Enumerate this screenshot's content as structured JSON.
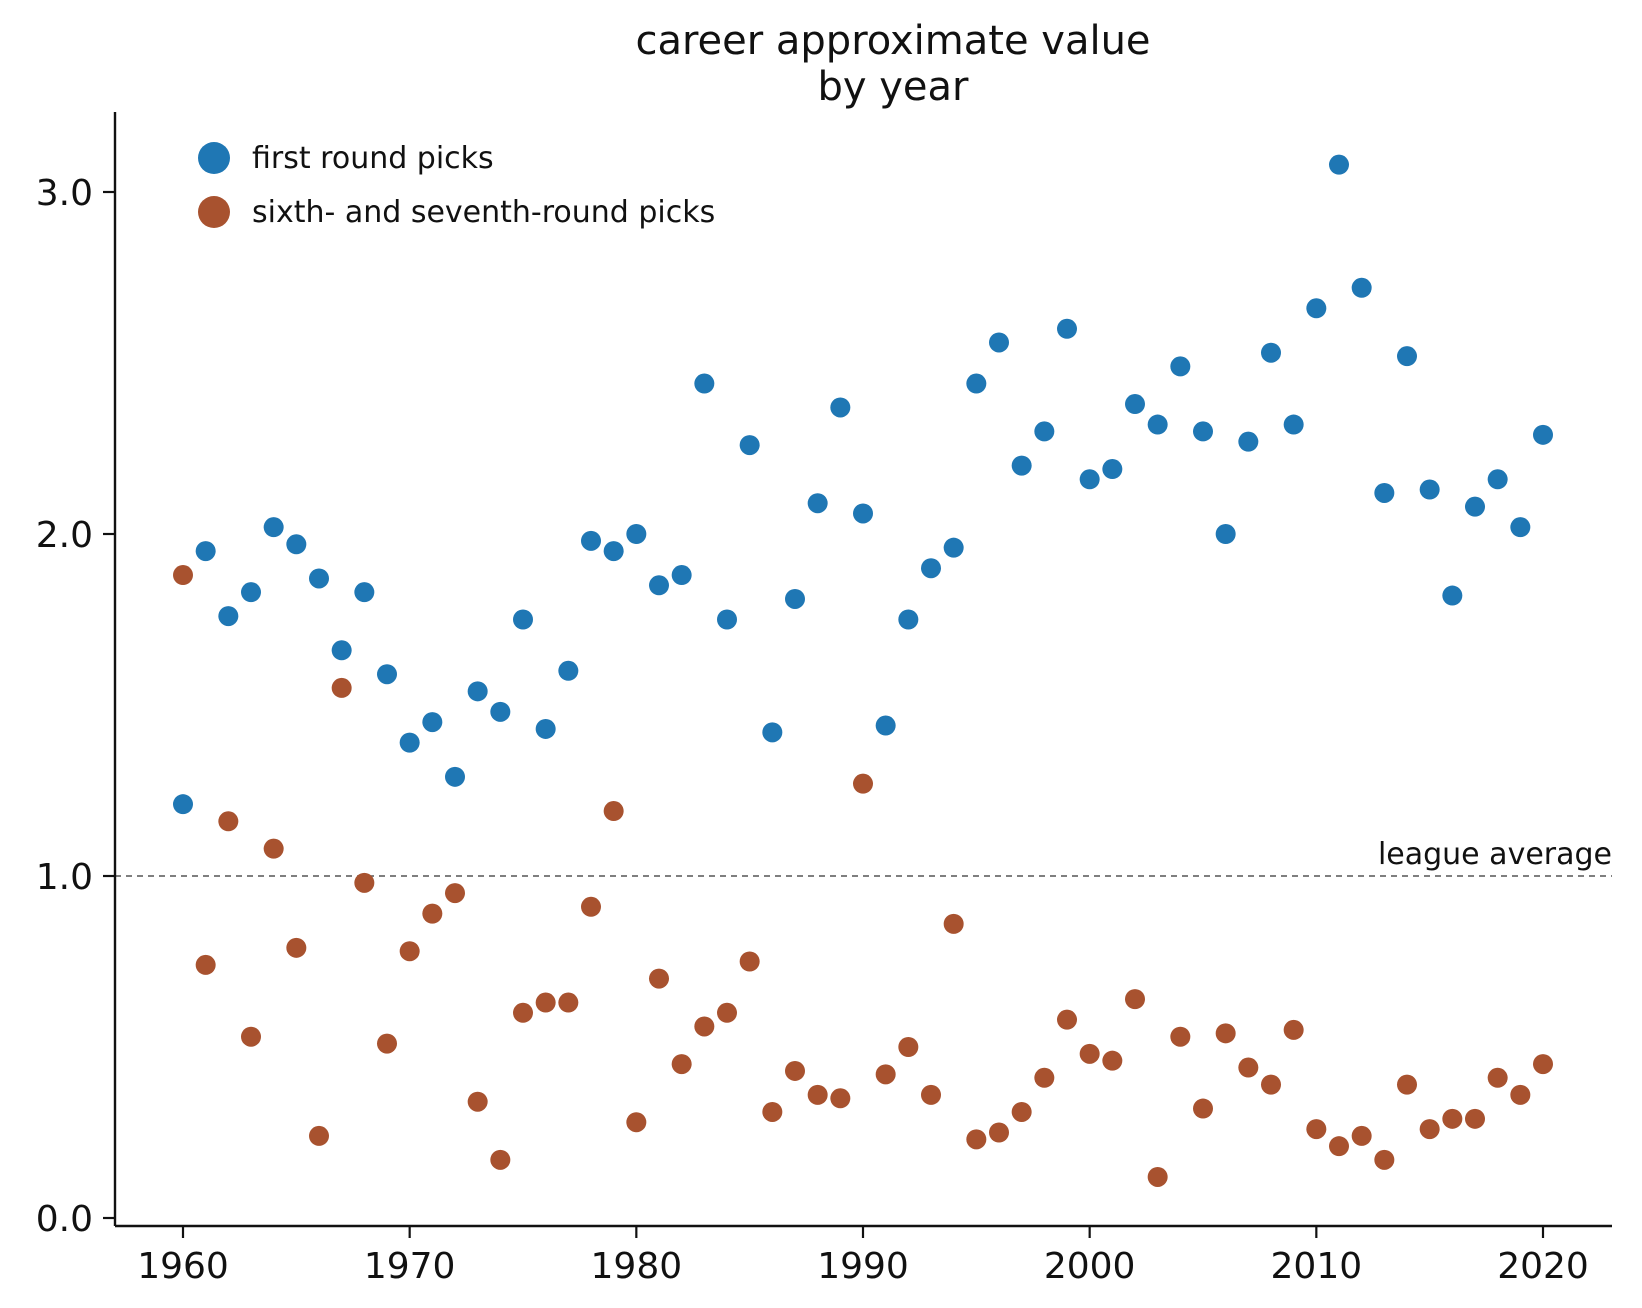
{
  "chart_data": {
    "type": "scatter",
    "title": "career approximate value\nby year",
    "xlabel": "",
    "ylabel": "",
    "xlim": [
      1957,
      2023
    ],
    "ylim": [
      -0.02,
      3.23
    ],
    "xticks": [
      1960,
      1970,
      1980,
      1990,
      2000,
      2010,
      2020
    ],
    "yticks": [
      0.0,
      1.0,
      2.0,
      3.0
    ],
    "ytick_labels": [
      "0.0",
      "1.0",
      "2.0",
      "3.0"
    ],
    "grid": false,
    "legend_position": "top-left",
    "reference_line": {
      "y": 1.0,
      "label": "league average",
      "style": "dashed"
    },
    "colors": {
      "first_round": "#1f77b4",
      "late_round": "#a8522f",
      "axis": "#111111",
      "reference": "#555555"
    },
    "series": [
      {
        "name": "first round picks",
        "x": [
          1960,
          1961,
          1962,
          1963,
          1964,
          1965,
          1966,
          1967,
          1968,
          1969,
          1970,
          1971,
          1972,
          1973,
          1974,
          1975,
          1976,
          1977,
          1978,
          1979,
          1980,
          1981,
          1982,
          1983,
          1984,
          1985,
          1986,
          1987,
          1988,
          1989,
          1990,
          1991,
          1992,
          1993,
          1994,
          1995,
          1996,
          1997,
          1998,
          1999,
          2000,
          2001,
          2002,
          2003,
          2004,
          2005,
          2006,
          2007,
          2008,
          2009,
          2010,
          2011,
          2012,
          2013,
          2014,
          2015,
          2016,
          2017,
          2018,
          2019,
          2020
        ],
        "y": [
          1.21,
          1.95,
          1.76,
          1.83,
          2.02,
          1.97,
          1.87,
          1.66,
          1.83,
          1.59,
          1.39,
          1.45,
          1.29,
          1.54,
          1.48,
          1.75,
          1.43,
          1.6,
          1.98,
          1.95,
          2.0,
          1.85,
          1.88,
          2.44,
          1.75,
          2.26,
          1.42,
          1.81,
          2.09,
          2.37,
          2.06,
          1.44,
          1.75,
          1.9,
          1.96,
          2.44,
          2.56,
          2.2,
          2.3,
          2.6,
          2.16,
          2.19,
          2.38,
          2.32,
          2.49,
          2.3,
          2.0,
          2.27,
          2.53,
          2.32,
          2.66,
          3.08,
          2.72,
          2.12,
          2.52,
          2.13,
          1.82,
          2.08,
          2.16,
          2.02,
          2.29
        ]
      },
      {
        "name": "sixth- and seventh-round picks",
        "x": [
          1960,
          1961,
          1962,
          1963,
          1964,
          1965,
          1966,
          1967,
          1968,
          1969,
          1970,
          1971,
          1972,
          1973,
          1974,
          1975,
          1976,
          1977,
          1978,
          1979,
          1980,
          1981,
          1982,
          1983,
          1984,
          1985,
          1986,
          1987,
          1988,
          1989,
          1990,
          1991,
          1992,
          1993,
          1994,
          1995,
          1996,
          1997,
          1998,
          1999,
          2000,
          2001,
          2002,
          2003,
          2004,
          2005,
          2006,
          2007,
          2008,
          2009,
          2010,
          2011,
          2012,
          2013,
          2014,
          2015,
          2016,
          2017,
          2018,
          2019,
          2020
        ],
        "y": [
          1.88,
          0.74,
          1.16,
          0.53,
          1.08,
          0.79,
          0.24,
          1.55,
          0.98,
          0.51,
          0.78,
          0.89,
          0.95,
          0.34,
          0.17,
          0.6,
          0.63,
          0.63,
          0.91,
          1.19,
          0.28,
          0.7,
          0.45,
          0.56,
          0.6,
          0.75,
          0.31,
          0.43,
          0.36,
          0.35,
          1.27,
          0.42,
          0.5,
          0.36,
          0.86,
          0.23,
          0.25,
          0.31,
          0.41,
          0.58,
          0.48,
          0.46,
          0.64,
          0.12,
          0.53,
          0.32,
          0.54,
          0.44,
          0.39,
          0.55,
          0.26,
          0.21,
          0.24,
          0.17,
          0.39,
          0.26,
          0.29,
          0.29,
          0.41,
          0.36,
          0.45
        ]
      }
    ]
  }
}
